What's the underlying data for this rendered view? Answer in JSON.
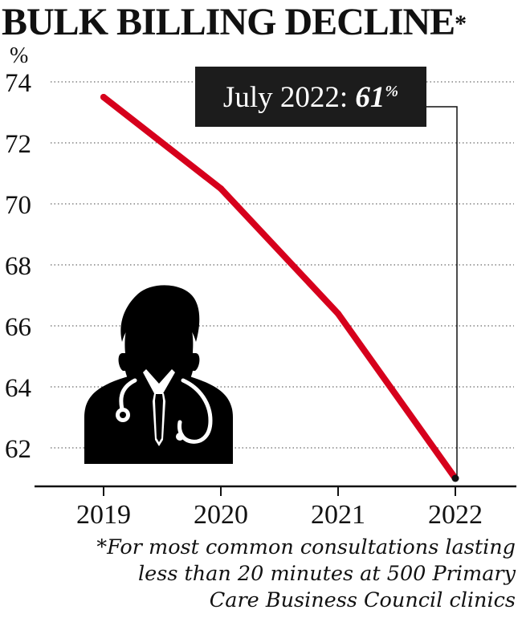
{
  "title": "BULK BILLING DECLINE",
  "title_asterisk": "*",
  "chart_data": {
    "type": "line",
    "title": "BULK BILLING DECLINE*",
    "ylabel": "%",
    "xlabel": "",
    "x_ticks": [
      "2019",
      "2020",
      "2021",
      "2022"
    ],
    "y_ticks": [
      62,
      64,
      66,
      68,
      70,
      72,
      74
    ],
    "ylim": [
      61,
      74.5
    ],
    "grid": "horizontal dotted",
    "series": [
      {
        "color": "#d6001c",
        "points": [
          {
            "x": 2019,
            "y": 73.5
          },
          {
            "x": 2020,
            "y": 70.5
          },
          {
            "x": 2021,
            "y": 66.4
          },
          {
            "x": 2022,
            "y": 61
          }
        ]
      }
    ],
    "annotation": {
      "text": "July 2022: ",
      "value": "61",
      "unit": "%",
      "target": {
        "x": 2022,
        "y": 61
      }
    }
  },
  "footnote": [
    "*For most common consultations lasting",
    "less than 20 minutes at 500 Primary",
    "Care Business Council clinics"
  ],
  "colors": {
    "line": "#d6001c",
    "annotation_bg": "#1c1c1c",
    "text": "#111111"
  },
  "icon": "doctor-with-stethoscope-icon"
}
